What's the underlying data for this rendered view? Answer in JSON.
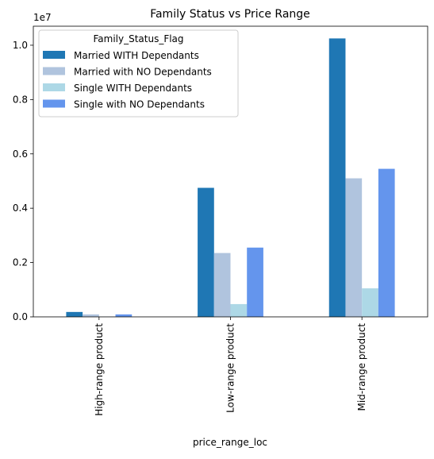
{
  "chart_data": {
    "type": "bar",
    "title": "Family Status vs Price Range",
    "xlabel": "price_range_loc",
    "ylabel": "",
    "y_offset_text": "1e7",
    "categories": [
      "High-range product",
      "Low-range product",
      "Mid-range product"
    ],
    "ylim": [
      0,
      1.07
    ],
    "y_ticks": [
      "0.0",
      "0.2",
      "0.4",
      "0.6",
      "0.8",
      "1.0"
    ],
    "legend": {
      "title": "Family_Status_Flag",
      "placement": "top-left"
    },
    "series": [
      {
        "name": "Married WITH Dependants",
        "color": "#1f77b4",
        "values": [
          0.018,
          0.475,
          1.025
        ]
      },
      {
        "name": "Married with NO Dependants",
        "color": "#b0c4de",
        "values": [
          0.009,
          0.235,
          0.51
        ]
      },
      {
        "name": "Single WITH Dependants",
        "color": "#add8e6",
        "values": [
          0.001,
          0.047,
          0.105
        ]
      },
      {
        "name": "Single with NO Dependants",
        "color": "#6495ed",
        "values": [
          0.009,
          0.255,
          0.545
        ]
      }
    ]
  }
}
